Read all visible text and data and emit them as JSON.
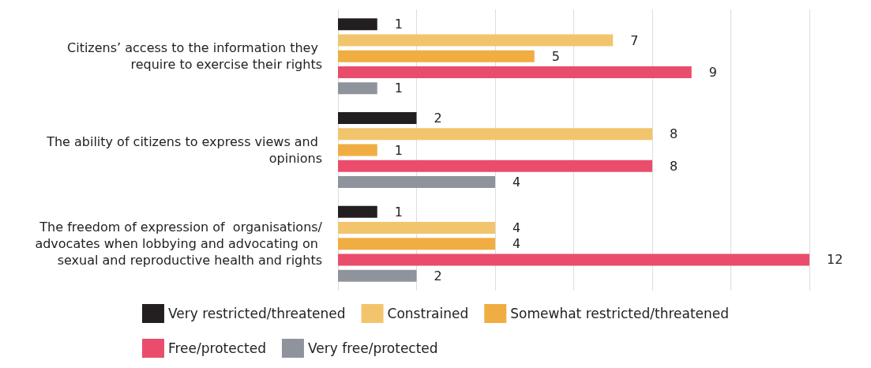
{
  "chart_data": {
    "type": "bar",
    "orientation": "horizontal",
    "categories": [
      "Citizens’ access to the information they require to exercise their rights",
      "The ability of citizens to express views and opinions",
      "The freedom of expression of  organisations/advocates when lobbying and advocating on sexual and reproductive health and rights"
    ],
    "series": [
      {
        "name": "Very restricted/threatened",
        "color": "#231f20",
        "values": [
          1,
          2,
          1
        ]
      },
      {
        "name": "Constrained",
        "color": "#f2c46d",
        "values": [
          7,
          8,
          4
        ]
      },
      {
        "name": "Somewhat restricted/threatened",
        "color": "#f0ad41",
        "values": [
          5,
          1,
          4
        ]
      },
      {
        "name": "Free/protected",
        "color": "#e94d6b",
        "values": [
          9,
          8,
          12
        ]
      },
      {
        "name": "Very free/protected",
        "color": "#8f939c",
        "values": [
          1,
          4,
          2
        ]
      }
    ],
    "xlim": [
      0,
      12
    ],
    "xticks": [
      {
        "value": 0,
        "label": null
      },
      {
        "value": 2,
        "label": null
      },
      {
        "value": 4,
        "label": null
      },
      {
        "value": 6,
        "label": null
      },
      {
        "value": 8,
        "label": null
      },
      {
        "value": 10,
        "label": null
      },
      {
        "value": 12,
        "label": null
      }
    ],
    "grid": "x",
    "tick_labels": "y",
    "data_labels": true,
    "legend": "bottom"
  }
}
